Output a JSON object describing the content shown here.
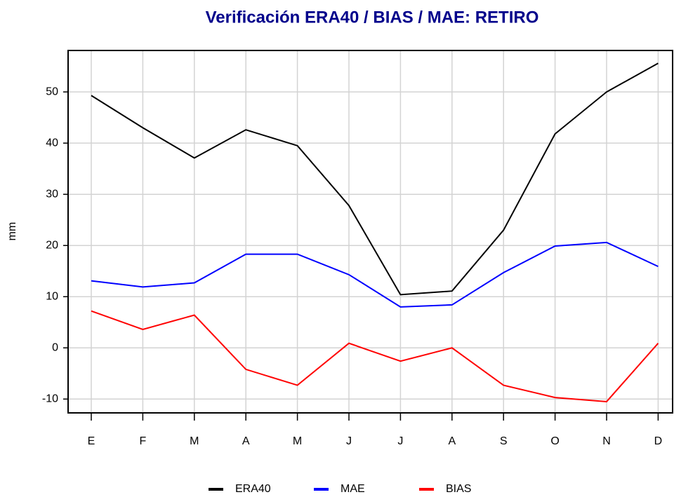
{
  "chart_data": {
    "type": "line",
    "title": "Verificación ERA40 / BIAS / MAE: RETIRO",
    "ylabel": "mm",
    "categories": [
      "E",
      "F",
      "M",
      "A",
      "M",
      "J",
      "J",
      "A",
      "S",
      "O",
      "N",
      "D"
    ],
    "series": [
      {
        "name": "ERA40",
        "color": "#000000",
        "values": [
          49.3,
          43,
          37.1,
          42.6,
          39.5,
          27.8,
          10.4,
          11.1,
          23,
          41.8,
          50,
          55.6
        ]
      },
      {
        "name": "MAE",
        "color": "#0000ff",
        "values": [
          13.1,
          11.9,
          12.7,
          18.3,
          18.3,
          14.3,
          8,
          8.4,
          14.7,
          19.9,
          20.6,
          15.9
        ]
      },
      {
        "name": "BIAS",
        "color": "#ff0000",
        "values": [
          7.2,
          3.6,
          6.4,
          -4.2,
          -7.3,
          0.9,
          -2.6,
          0,
          -7.3,
          -9.7,
          -10.5,
          0.9
        ]
      }
    ],
    "ylim": [
      -12.7,
      58.1
    ],
    "yticks": [
      -10,
      0,
      10,
      20,
      30,
      40,
      50
    ],
    "grid": true,
    "legend": "bottom"
  }
}
